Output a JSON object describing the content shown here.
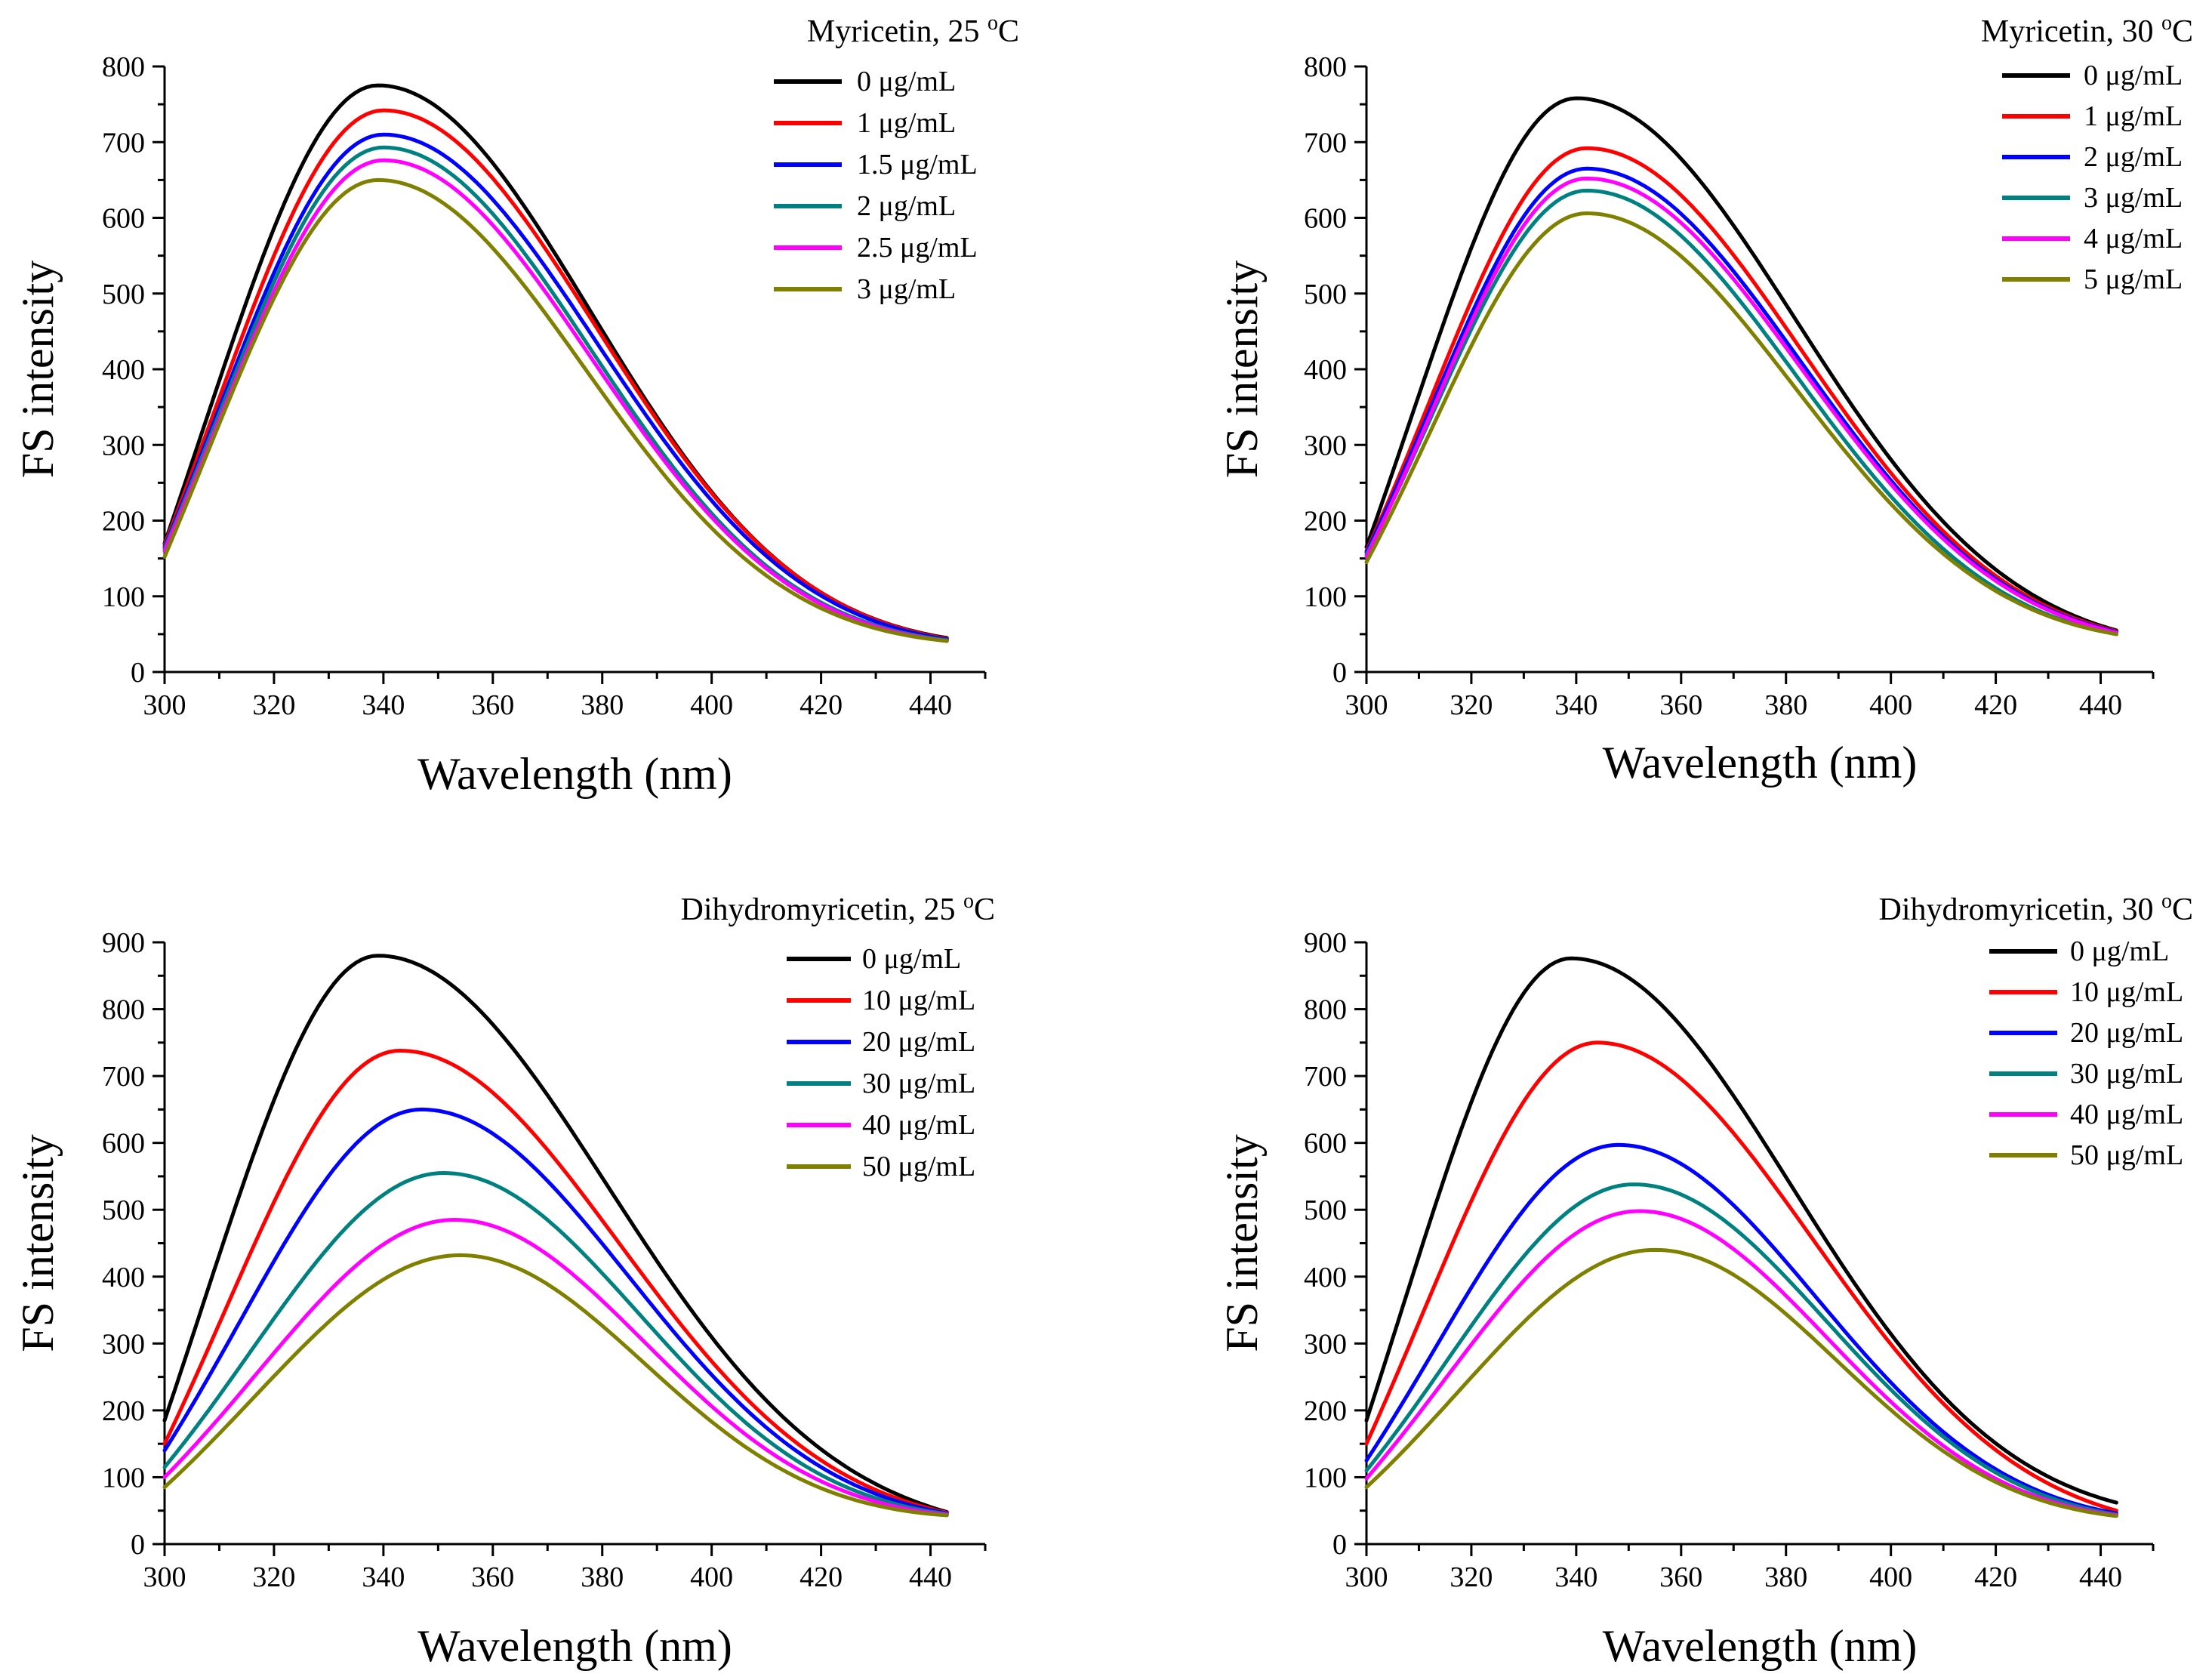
{
  "figure": {
    "description_free": true
  },
  "chart_data": [
    {
      "id": "myr25",
      "type": "line",
      "title": "Myricetin, 25 ",
      "title_sup": "o",
      "title_unit": "C",
      "xlabel": "Wavelength (nm)",
      "ylabel": "FS intensity",
      "xlim": [
        300,
        450
      ],
      "ylim": [
        0,
        800
      ],
      "xticks": [
        300,
        320,
        340,
        360,
        380,
        400,
        420,
        440
      ],
      "yticks": [
        0,
        100,
        200,
        300,
        400,
        500,
        600,
        700,
        800
      ],
      "x_end": 443,
      "legend_loc": "top-right",
      "series": [
        {
          "name": "0 μg/mL",
          "color": "#000000",
          "peak_x": 339,
          "peak": 775,
          "y300": 170,
          "y443": 45,
          "sl": 28,
          "sr": 39
        },
        {
          "name": "1 μg/mL",
          "color": "#ff0000",
          "peak_x": 340,
          "peak": 742,
          "y300": 168,
          "y443": 44,
          "sl": 28,
          "sr": 39
        },
        {
          "name": "1.5 μg/mL",
          "color": "#0000ff",
          "peak_x": 340,
          "peak": 710,
          "y300": 165,
          "y443": 43,
          "sl": 28,
          "sr": 39
        },
        {
          "name": "2 μg/mL",
          "color": "#008080",
          "peak_x": 340,
          "peak": 693,
          "y300": 163,
          "y443": 42,
          "sl": 28,
          "sr": 38
        },
        {
          "name": "2.5 μg/mL",
          "color": "#ff00ff",
          "peak_x": 340,
          "peak": 676,
          "y300": 160,
          "y443": 41,
          "sl": 28,
          "sr": 38
        },
        {
          "name": "3 μg/mL",
          "color": "#808000",
          "peak_x": 339,
          "peak": 650,
          "y300": 152,
          "y443": 41,
          "sl": 28,
          "sr": 38
        }
      ]
    },
    {
      "id": "myr30",
      "type": "line",
      "title": "Myricetin, 30 ",
      "title_sup": "o",
      "title_unit": "C",
      "xlabel": "Wavelength (nm)",
      "ylabel": "FS intensity",
      "xlim": [
        300,
        450
      ],
      "ylim": [
        0,
        800
      ],
      "xticks": [
        300,
        320,
        340,
        360,
        380,
        400,
        420,
        440
      ],
      "yticks": [
        0,
        100,
        200,
        300,
        400,
        500,
        600,
        700,
        800
      ],
      "x_end": 443,
      "legend_loc": "top-right",
      "series": [
        {
          "name": "0 μg/mL",
          "color": "#000000",
          "peak_x": 340,
          "peak": 758,
          "y300": 165,
          "y443": 55,
          "sl": 28,
          "sr": 42
        },
        {
          "name": "1 μg/mL",
          "color": "#ff0000",
          "peak_x": 342,
          "peak": 692,
          "y300": 160,
          "y443": 54,
          "sl": 28,
          "sr": 41
        },
        {
          "name": "2 μg/mL",
          "color": "#0000ff",
          "peak_x": 342,
          "peak": 665,
          "y300": 158,
          "y443": 53,
          "sl": 28,
          "sr": 41
        },
        {
          "name": "3 μg/mL",
          "color": "#008080",
          "peak_x": 342,
          "peak": 636,
          "y300": 155,
          "y443": 50,
          "sl": 28,
          "sr": 40
        },
        {
          "name": "4 μg/mL",
          "color": "#ff00ff",
          "peak_x": 342,
          "peak": 652,
          "y300": 152,
          "y443": 52,
          "sl": 28,
          "sr": 41
        },
        {
          "name": "5 μg/mL",
          "color": "#808000",
          "peak_x": 342,
          "peak": 606,
          "y300": 145,
          "y443": 50,
          "sl": 28,
          "sr": 40
        }
      ]
    },
    {
      "id": "dmy25",
      "type": "line",
      "title": "Dihydromyricetin, 25 ",
      "title_sup": "o",
      "title_unit": "C",
      "xlabel": "Wavelength (nm)",
      "ylabel": "FS intensity",
      "xlim": [
        300,
        450
      ],
      "ylim": [
        0,
        900
      ],
      "xticks": [
        300,
        320,
        340,
        360,
        380,
        400,
        420,
        440
      ],
      "yticks": [
        0,
        100,
        200,
        300,
        400,
        500,
        600,
        700,
        800,
        900
      ],
      "x_end": 443,
      "legend_loc": "top-right",
      "series": [
        {
          "name": "0 μg/mL",
          "color": "#000000",
          "peak_x": 339,
          "peak": 880,
          "y300": 185,
          "y443": 48,
          "sl": 28,
          "sr": 42
        },
        {
          "name": "10 μg/mL",
          "color": "#ff0000",
          "peak_x": 343,
          "peak": 738,
          "y300": 150,
          "y443": 47,
          "sl": 29,
          "sr": 40
        },
        {
          "name": "20 μg/mL",
          "color": "#0000ff",
          "peak_x": 347,
          "peak": 650,
          "y300": 140,
          "y443": 46,
          "sl": 31,
          "sr": 38
        },
        {
          "name": "30 μg/mL",
          "color": "#008080",
          "peak_x": 351,
          "peak": 555,
          "y300": 115,
          "y443": 45,
          "sl": 33,
          "sr": 36
        },
        {
          "name": "40 μg/mL",
          "color": "#ff00ff",
          "peak_x": 353,
          "peak": 485,
          "y300": 100,
          "y443": 44,
          "sl": 34,
          "sr": 35
        },
        {
          "name": "50 μg/mL",
          "color": "#808000",
          "peak_x": 354,
          "peak": 432,
          "y300": 85,
          "y443": 43,
          "sl": 35,
          "sr": 34
        }
      ]
    },
    {
      "id": "dmy30",
      "type": "line",
      "title": "Dihydromyricetin, 30 ",
      "title_sup": "o",
      "title_unit": "C",
      "xlabel": "Wavelength (nm)",
      "ylabel": "FS intensity",
      "xlim": [
        300,
        450
      ],
      "ylim": [
        0,
        900
      ],
      "xticks": [
        300,
        320,
        340,
        360,
        380,
        400,
        420,
        440
      ],
      "yticks": [
        0,
        100,
        200,
        300,
        400,
        500,
        600,
        700,
        800,
        900
      ],
      "x_end": 443,
      "legend_loc": "top-right",
      "series": [
        {
          "name": "0 μg/mL",
          "color": "#000000",
          "peak_x": 339,
          "peak": 876,
          "y300": 185,
          "y443": 62,
          "sl": 28,
          "sr": 42
        },
        {
          "name": "10 μg/mL",
          "color": "#ff0000",
          "peak_x": 344,
          "peak": 750,
          "y300": 150,
          "y443": 50,
          "sl": 30,
          "sr": 41
        },
        {
          "name": "20 μg/mL",
          "color": "#0000ff",
          "peak_x": 348,
          "peak": 597,
          "y300": 125,
          "y443": 46,
          "sl": 32,
          "sr": 38
        },
        {
          "name": "30 μg/mL",
          "color": "#008080",
          "peak_x": 351,
          "peak": 538,
          "y300": 110,
          "y443": 44,
          "sl": 33,
          "sr": 37
        },
        {
          "name": "40 μg/mL",
          "color": "#ff00ff",
          "peak_x": 352,
          "peak": 498,
          "y300": 98,
          "y443": 43,
          "sl": 34,
          "sr": 36
        },
        {
          "name": "50 μg/mL",
          "color": "#808000",
          "peak_x": 355,
          "peak": 440,
          "y300": 85,
          "y443": 42,
          "sl": 35,
          "sr": 35
        }
      ]
    }
  ]
}
